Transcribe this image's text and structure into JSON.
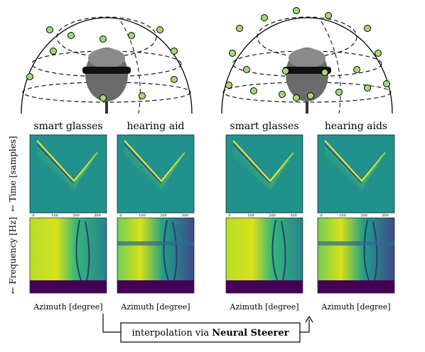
{
  "headsets": [
    {
      "panels": [
        {
          "title": "smart glasses",
          "x_label": "Azimuth [degree]"
        },
        {
          "title": "hearing aid",
          "x_label": "Azimuth [degree]"
        }
      ]
    },
    {
      "panels": [
        {
          "title": "smart glasses",
          "x_label": "Azimuth [degree]"
        },
        {
          "title": "hearing aids",
          "x_label": "Azimuth [degree]"
        }
      ]
    }
  ],
  "y_labels": {
    "time": "← Time [samples]",
    "frequency": "← Frequency [Hz]"
  },
  "xticks": [
    "0",
    "100",
    "200",
    "300"
  ],
  "interpolation": {
    "prefix": "interpolation via",
    "emph": "Neural Steerer"
  }
}
